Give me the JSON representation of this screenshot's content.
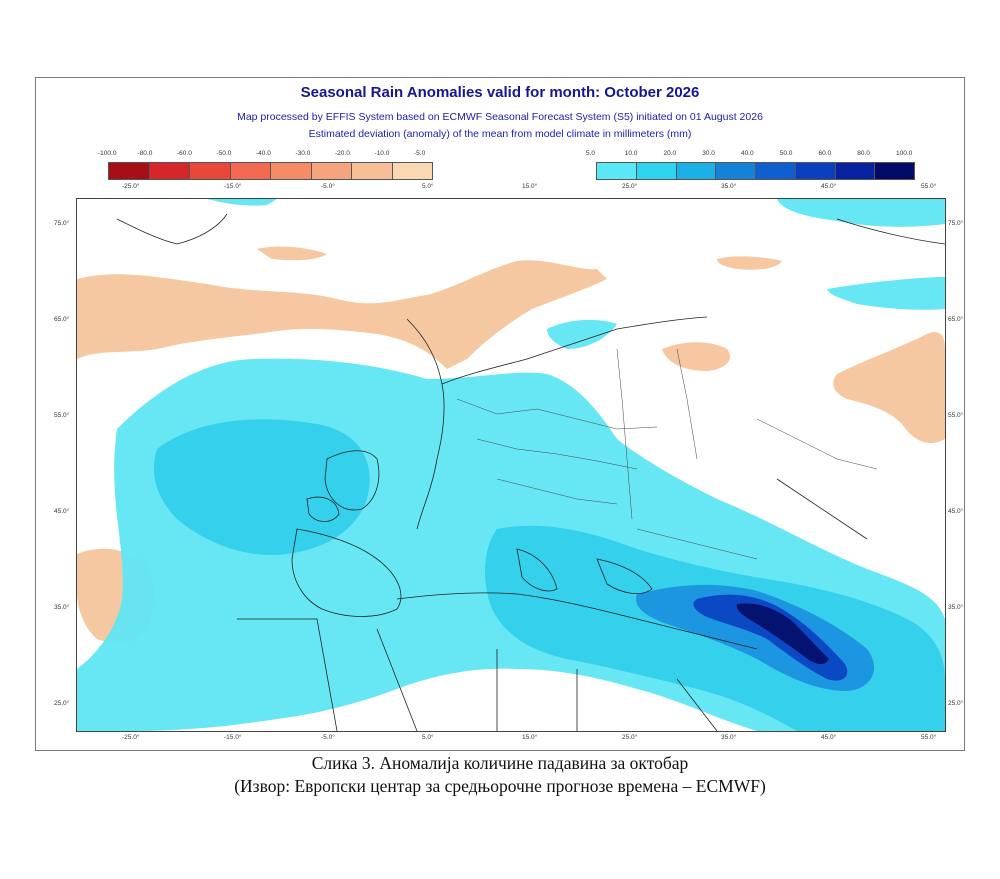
{
  "title": "Seasonal Rain Anomalies valid for month: October 2026",
  "subtitle1": "Map processed by EFFIS System based on ECMWF Seasonal Forecast System (S5) initiated on 01 August 2026",
  "subtitle2": "Estimated deviation (anomaly) of the mean from model climate in millimeters (mm)",
  "legend_negative": {
    "labels": [
      "-100.0",
      "-80.0",
      "-60.0",
      "-50.0",
      "-40.0",
      "-30.0",
      "-20.0",
      "-10.0",
      "-5.0"
    ],
    "colors": [
      "#a50f15",
      "#d7262a",
      "#e9473a",
      "#f26a4f",
      "#f58c66",
      "#f6a47e",
      "#f8be98",
      "#fad8b3"
    ]
  },
  "legend_positive": {
    "labels": [
      "5.0",
      "10.0",
      "20.0",
      "30.0",
      "40.0",
      "50.0",
      "60.0",
      "80.0",
      "100.0"
    ],
    "colors": [
      "#5be8f5",
      "#2fd3ef",
      "#1bb0e8",
      "#1482d9",
      "#0f5fcf",
      "#0a3fbd",
      "#06229f",
      "#020c66"
    ]
  },
  "lon_labels_top": [
    "-25.0°",
    "-15.0°",
    "-5.0°",
    "5.0°",
    "15.0°",
    "25.0°",
    "35.0°",
    "45.0°",
    "55.0°"
  ],
  "lon_labels_bottom": [
    "-25.0°",
    "-15.0°",
    "-5.0°",
    "5.0°",
    "15.0°",
    "25.0°",
    "35.0°",
    "45.0°",
    "55.0°"
  ],
  "lat_labels": [
    "75.0°",
    "65.0°",
    "55.0°",
    "45.0°",
    "35.0°",
    "25.0°"
  ],
  "caption_line1": "Слика 3. Аномалија количине падавина за октобар",
  "caption_line2": "(Извор: Европски центар за средњорочне прогнозе времена – ECMWF)"
}
